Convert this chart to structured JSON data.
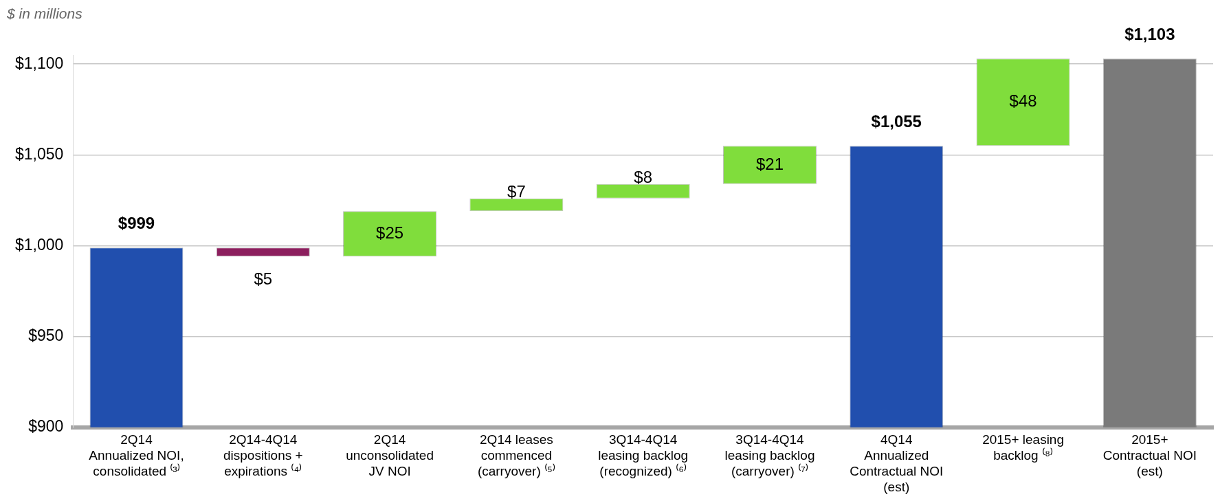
{
  "chart_data": {
    "type": "bar",
    "subtitle": "$ in millions",
    "categories": [
      "2Q14\nAnnualized NOI,\nconsolidated ⁽³⁾",
      "2Q14-4Q14\ndispositions +\nexpirations ⁽⁴⁾",
      "2Q14\nunconsolidated\nJV NOI",
      "2Q14 leases\ncommenced\n(carryover) ⁽⁵⁾",
      "3Q14-4Q14\nleasing backlog\n(recognized) ⁽⁶⁾",
      "3Q14-4Q14\nleasing backlog\n(carryover) ⁽⁷⁾",
      "4Q14\nAnnualized\nContractual NOI\n(est)",
      "2015+ leasing\nbacklog ⁽⁸⁾",
      "2015+\nContractual NOI\n(est)"
    ],
    "values": [
      999,
      -5,
      25,
      7,
      8,
      21,
      1055,
      48,
      1103
    ],
    "base": [
      null,
      999,
      994,
      1019,
      1026,
      1034,
      null,
      1055,
      null
    ],
    "colors": [
      "#214fae",
      "#8c1f5e",
      "#80dd3c",
      "#80dd3c",
      "#80dd3c",
      "#80dd3c",
      "#214fae",
      "#80dd3c",
      "#7a7a7a"
    ],
    "value_labels": [
      "$999",
      "$5",
      "$25",
      "$7",
      "$8",
      "$21",
      "$1,055",
      "$48",
      "$1,103"
    ],
    "ylim": [
      900,
      1105
    ],
    "yticks": [
      {
        "value": 900,
        "label": "$900"
      },
      {
        "value": 950,
        "label": "$950"
      },
      {
        "value": 1000,
        "label": "$1,000"
      },
      {
        "value": 1050,
        "label": "$1,050"
      },
      {
        "value": 1100,
        "label": "$1,100"
      }
    ],
    "grid": "y",
    "legend": false
  }
}
